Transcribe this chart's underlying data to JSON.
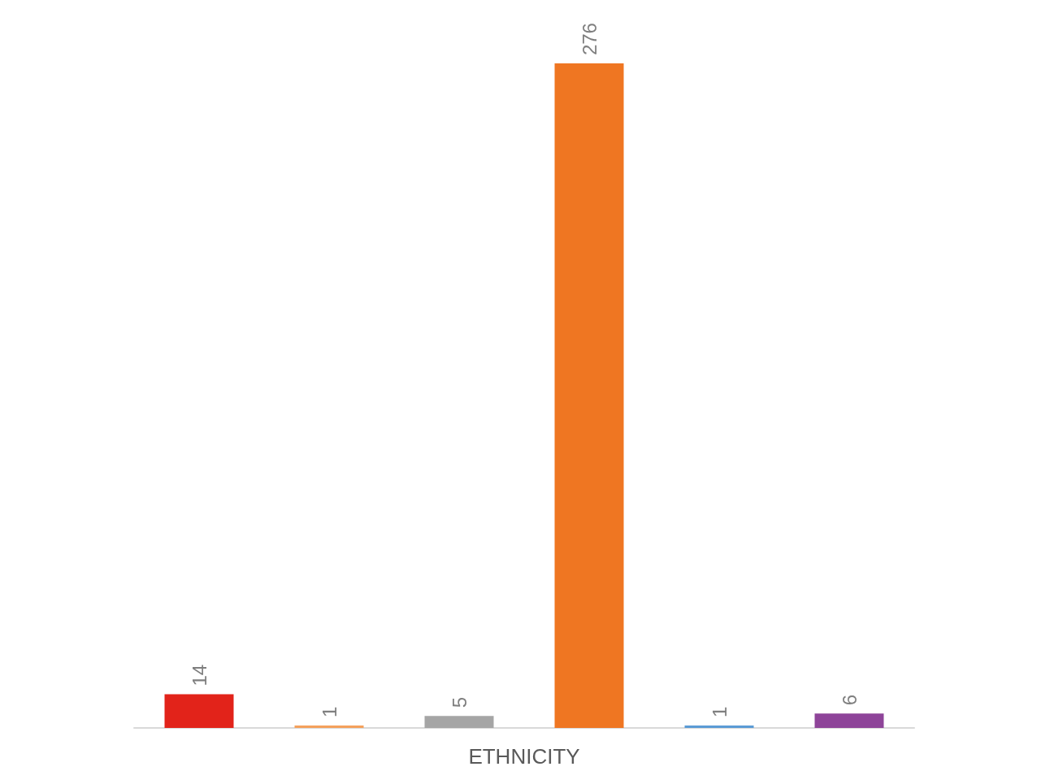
{
  "chart_data": {
    "type": "bar",
    "xlabel": "ETHNICITY",
    "categories": [
      null,
      null,
      null,
      null,
      null,
      null
    ],
    "data_labels": true,
    "values": [
      14,
      1,
      5,
      276,
      1,
      6
    ],
    "colors": [
      "#e2231a",
      "#f4a15c",
      "#a5a5a5",
      "#ef7622",
      "#5b9bd5",
      "#8e4499"
    ]
  }
}
